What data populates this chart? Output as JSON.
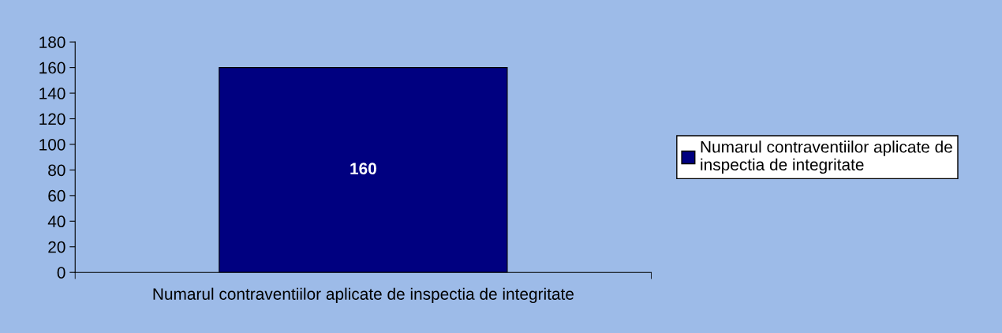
{
  "chart_data": {
    "type": "bar",
    "categories": [
      "Numarul contraventiilor aplicate de inspectia de integritate"
    ],
    "series": [
      {
        "name": "Numarul contraventiilor aplicate de inspectia de integritate",
        "color": "#000080",
        "values": [
          160
        ]
      }
    ],
    "ylim": [
      0,
      180
    ],
    "yticks": [
      0,
      20,
      40,
      60,
      80,
      100,
      120,
      140,
      160,
      180
    ],
    "data_labels": true,
    "grid": false,
    "legend": "right"
  }
}
